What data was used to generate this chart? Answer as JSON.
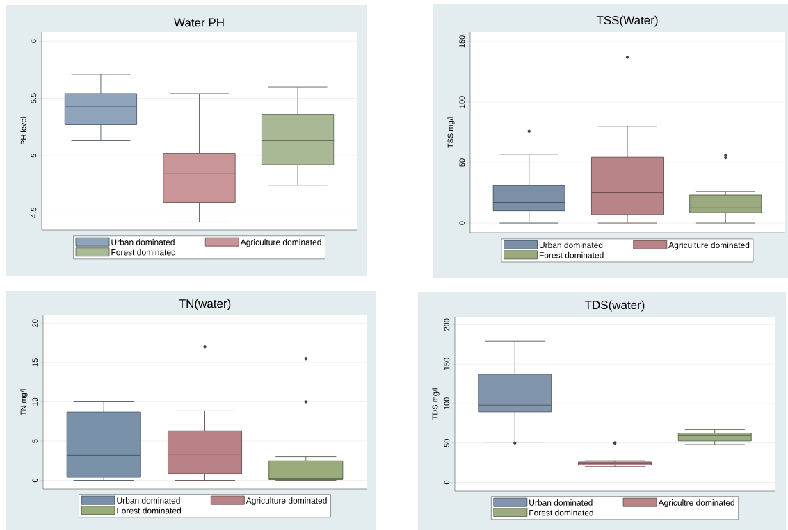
{
  "chart_data": [
    {
      "type": "box",
      "title": "Water PH",
      "ylabel": "PH level",
      "categories": [
        null
      ],
      "ylim": [
        4.35,
        6.08
      ],
      "yticks": [
        4.5,
        5,
        5.5,
        6
      ],
      "grid": "y",
      "legend": "bottom",
      "tick_labels": "y",
      "series": [
        {
          "name": "Urban dominated",
          "color": "#8ea4ba",
          "boxes": [
            {
              "low": 5.13,
              "q1": 5.27,
              "median": 5.43,
              "q3": 5.54,
              "high": 5.71
            }
          ]
        },
        {
          "name": "Agriculture dominated",
          "color": "#c99599",
          "boxes": [
            {
              "low": 4.42,
              "q1": 4.59,
              "median": 4.84,
              "q3": 5.02,
              "high": 5.54
            }
          ]
        },
        {
          "name": "Forest dominated",
          "color": "#a9b995",
          "boxes": [
            {
              "low": 4.74,
              "q1": 4.92,
              "median": 5.13,
              "q3": 5.36,
              "high": 5.6
            }
          ]
        }
      ]
    },
    {
      "type": "box",
      "title": "TSS(Water)",
      "ylabel": "TSS mg/l",
      "categories": [
        null
      ],
      "ylim": [
        -8,
        158
      ],
      "yticks": [
        0,
        50,
        100,
        150
      ],
      "grid": "y",
      "legend": "bottom",
      "tick_labels": "y",
      "series": [
        {
          "name": "Urban dominated",
          "color": "#7b90a8",
          "boxes": [
            {
              "low": 0,
              "q1": 10,
              "median": 17,
              "q3": 31,
              "high": 57,
              "outliers": [
                76
              ]
            }
          ]
        },
        {
          "name": "Agriculture dominated",
          "color": "#b98487",
          "boxes": [
            {
              "low": 0,
              "q1": 7,
              "median": 25,
              "q3": 54.5,
              "high": 80,
              "outliers": [
                137
              ]
            }
          ]
        },
        {
          "name": "Forest dominated",
          "color": "#9aaa7e",
          "boxes": [
            {
              "low": 0,
              "q1": 8.5,
              "median": 12.5,
              "q3": 23,
              "high": 26,
              "outliers": [
                54,
                56
              ]
            }
          ]
        }
      ]
    },
    {
      "type": "box",
      "title": "TN(water)",
      "ylabel": "TN mg/l",
      "categories": [
        null
      ],
      "ylim": [
        -1.1,
        21
      ],
      "yticks": [
        0,
        5,
        10,
        15,
        20
      ],
      "grid": "y",
      "legend": "bottom",
      "tick_labels": "y",
      "series": [
        {
          "name": "Urban dominated",
          "color": "#7890a8",
          "boxes": [
            {
              "low": 0,
              "q1": 0.4,
              "median": 3.2,
              "q3": 8.7,
              "high": 10
            }
          ]
        },
        {
          "name": "Agriculture dominated",
          "color": "#b88286",
          "boxes": [
            {
              "low": 0,
              "q1": 0.85,
              "median": 3.35,
              "q3": 6.3,
              "high": 8.85,
              "outliers": [
                17
              ]
            }
          ]
        },
        {
          "name": "Forest dominated",
          "color": "#9aab7c",
          "boxes": [
            {
              "low": 0,
              "q1": 0.1,
              "median": 0.25,
              "q3": 2.5,
              "high": 3,
              "outliers": [
                10,
                15.5
              ]
            }
          ]
        }
      ]
    },
    {
      "type": "box",
      "title": "TDS(water)",
      "ylabel": "TDS mg/l",
      "categories": [
        null
      ],
      "ylim": [
        -11,
        210
      ],
      "yticks": [
        0,
        50,
        100,
        150,
        200
      ],
      "grid": "y",
      "legend": "bottom",
      "tick_labels": "y",
      "series": [
        {
          "name": "Urban dominated",
          "color": "#8196ac",
          "boxes": [
            {
              "low": 51,
              "q1": 89.5,
              "median": 98,
              "q3": 137,
              "high": 179,
              "outliers": [
                50
              ]
            }
          ]
        },
        {
          "name": "Agricultre dominated",
          "color": "#b98488",
          "boxes": [
            {
              "low": 20,
              "q1": 22,
              "median": 24,
              "q3": 26,
              "high": 27.6,
              "outliers": [
                50,
                50
              ]
            }
          ]
        },
        {
          "name": "Forest dominated",
          "color": "#9cac80",
          "boxes": [
            {
              "low": 48,
              "q1": 52.5,
              "median": 60,
              "q3": 62.5,
              "high": 67
            }
          ]
        }
      ]
    }
  ]
}
